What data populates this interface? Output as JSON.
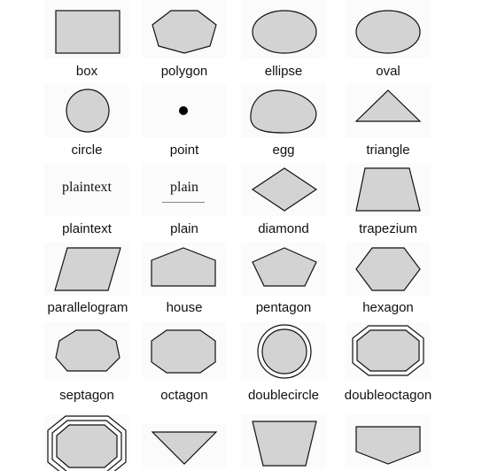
{
  "colors": {
    "fill": "#d3d3d3",
    "stroke": "#111111",
    "point": "#000000",
    "background": "#ffffff"
  },
  "shapes": [
    {
      "id": "box",
      "label": "box"
    },
    {
      "id": "polygon",
      "label": "polygon"
    },
    {
      "id": "ellipse",
      "label": "ellipse"
    },
    {
      "id": "oval",
      "label": "oval"
    },
    {
      "id": "circle",
      "label": "circle"
    },
    {
      "id": "point",
      "label": "point"
    },
    {
      "id": "egg",
      "label": "egg"
    },
    {
      "id": "triangle",
      "label": "triangle"
    },
    {
      "id": "plaintext",
      "label": "plaintext",
      "inner_text": "plaintext"
    },
    {
      "id": "plain",
      "label": "plain",
      "inner_text": "plain"
    },
    {
      "id": "diamond",
      "label": "diamond"
    },
    {
      "id": "trapezium",
      "label": "trapezium"
    },
    {
      "id": "parallelogram",
      "label": "parallelogram"
    },
    {
      "id": "house",
      "label": "house"
    },
    {
      "id": "pentagon",
      "label": "pentagon"
    },
    {
      "id": "hexagon",
      "label": "hexagon"
    },
    {
      "id": "septagon",
      "label": "septagon"
    },
    {
      "id": "octagon",
      "label": "octagon"
    },
    {
      "id": "doublecircle",
      "label": "doublecircle"
    },
    {
      "id": "doubleoctagon",
      "label": "doubleoctagon"
    },
    {
      "id": "tripleoctagon",
      "label": ""
    },
    {
      "id": "invtriangle",
      "label": ""
    },
    {
      "id": "invtrapezium",
      "label": ""
    },
    {
      "id": "invhouse",
      "label": ""
    }
  ]
}
